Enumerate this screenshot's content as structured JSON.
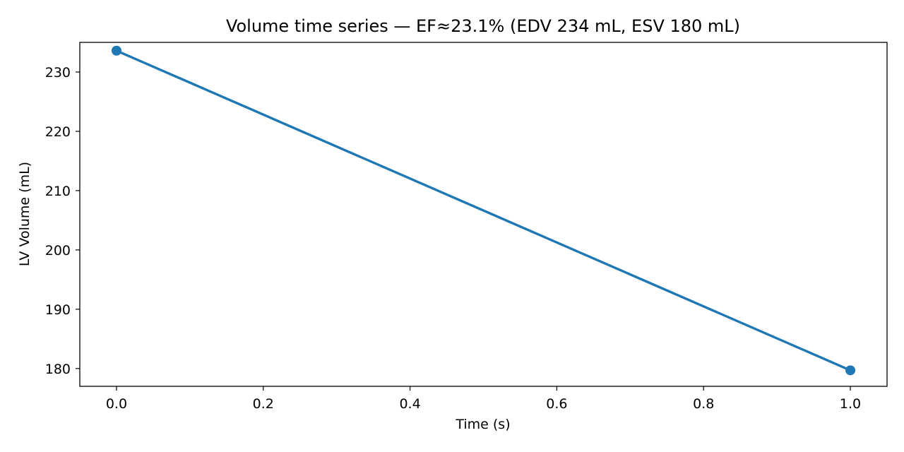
{
  "chart_data": {
    "type": "line",
    "title": "Volume time series — EF≈23.1% (EDV 234 mL, ESV 180 mL)",
    "xlabel": "Time (s)",
    "ylabel": "LV Volume (mL)",
    "xlim": [
      -0.05,
      1.05
    ],
    "ylim": [
      177,
      235
    ],
    "xticks": [
      0.0,
      0.2,
      0.4,
      0.6,
      0.8,
      1.0
    ],
    "xtick_labels": [
      "0.0",
      "0.2",
      "0.4",
      "0.6",
      "0.8",
      "1.0"
    ],
    "yticks": [
      180,
      190,
      200,
      210,
      220,
      230
    ],
    "ytick_labels": [
      "180",
      "190",
      "200",
      "210",
      "220",
      "230"
    ],
    "grid": false,
    "series": [
      {
        "x": [
          0.0,
          1.0
        ],
        "y": [
          233.6,
          179.7
        ],
        "color": "#1f77b4",
        "marker": "circle"
      }
    ]
  }
}
